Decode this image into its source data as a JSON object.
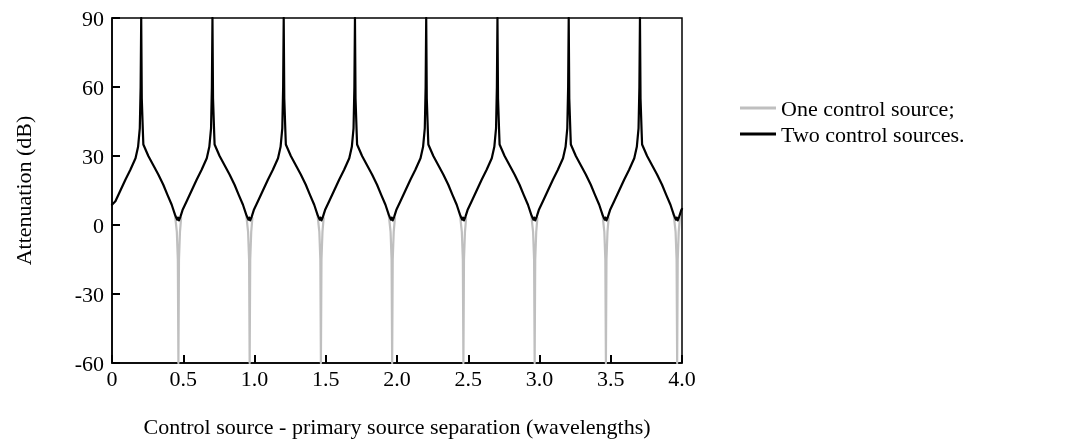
{
  "chart_data": {
    "type": "line",
    "xlabel": "Control source - primary source separation (wavelengths)",
    "ylabel": "Attenuation (dB)",
    "xlim": [
      0,
      4
    ],
    "xticks": [
      0,
      {
        "value": 0.5,
        "label": "0.5"
      },
      {
        "value": 1,
        "label": "1.0"
      },
      {
        "value": 1.5,
        "label": "1.5"
      },
      {
        "value": 2,
        "label": "2.0"
      },
      {
        "value": 2.5,
        "label": "2.5"
      },
      {
        "value": 3,
        "label": "3.0"
      },
      {
        "value": 3.5,
        "label": "3.5"
      },
      {
        "value": 4,
        "label": "4.0"
      }
    ],
    "ylim": [
      -60,
      90
    ],
    "yticks": [
      -60,
      -30,
      0,
      30,
      60,
      90
    ],
    "grid": false,
    "legend": "right",
    "marker": "none",
    "line_style": "solid",
    "series": [
      {
        "name": "One control source;",
        "color": "#bfbfbf",
        "x": [
          0.442,
          0.455,
          0.462,
          0.466,
          0.47,
          0.477,
          0.485,
          0.555,
          0.942,
          0.955,
          0.962,
          0.966,
          0.97,
          0.977,
          0.985,
          1.055,
          1.442,
          1.455,
          1.462,
          1.466,
          1.47,
          1.477,
          1.485,
          1.555,
          1.942,
          1.955,
          1.962,
          1.966,
          1.97,
          1.977,
          1.985,
          2.055,
          2.442,
          2.455,
          2.462,
          2.466,
          2.47,
          2.477,
          2.485,
          2.555,
          2.942,
          2.955,
          2.962,
          2.966,
          2.97,
          2.977,
          2.985,
          3.055,
          3.442,
          3.455,
          3.462,
          3.466,
          3.47,
          3.477,
          3.485,
          3.555,
          3.942,
          3.955,
          3.962,
          3.966,
          3.97,
          3.977,
          3.985
        ],
        "values": [
          4.5,
          -3,
          -15,
          -60,
          -15,
          -3,
          3,
          null,
          4.5,
          -3,
          -15,
          -60,
          -15,
          -3,
          3,
          null,
          4.5,
          -3,
          -15,
          -60,
          -15,
          -3,
          3,
          null,
          4.5,
          -3,
          -15,
          -60,
          -15,
          -3,
          3,
          null,
          4.5,
          -3,
          -15,
          -60,
          -15,
          -3,
          3,
          null,
          4.5,
          -3,
          -15,
          -60,
          -15,
          -3,
          3,
          null,
          4.5,
          -3,
          -15,
          -60,
          -15,
          -3,
          3,
          null,
          4.5,
          -3,
          -15,
          -60,
          -15,
          -3,
          3
        ]
      },
      {
        "name": "Two control sources.",
        "color": "#000000",
        "x": [
          0,
          0.024,
          0.059,
          0.094,
          0.129,
          0.165,
          0.183,
          0.195,
          0.201,
          0.205,
          0.209,
          0.217,
          0.22,
          0.255,
          0.29,
          0.325,
          0.36,
          0.39,
          0.419,
          0.442,
          0.452,
          0.458,
          0.463,
          0.47,
          0.48,
          0.495,
          0.524,
          0.559,
          0.594,
          0.629,
          0.665,
          0.683,
          0.695,
          0.701,
          0.705,
          0.709,
          0.717,
          0.72,
          0.755,
          0.79,
          0.825,
          0.86,
          0.89,
          0.919,
          0.942,
          0.952,
          0.958,
          0.963,
          0.97,
          0.98,
          0.995,
          1.024,
          1.059,
          1.094,
          1.129,
          1.165,
          1.183,
          1.195,
          1.201,
          1.205,
          1.209,
          1.217,
          1.22,
          1.255,
          1.29,
          1.325,
          1.36,
          1.39,
          1.419,
          1.442,
          1.452,
          1.458,
          1.463,
          1.47,
          1.48,
          1.495,
          1.524,
          1.559,
          1.594,
          1.629,
          1.665,
          1.683,
          1.695,
          1.701,
          1.705,
          1.709,
          1.717,
          1.72,
          1.755,
          1.79,
          1.825,
          1.86,
          1.89,
          1.919,
          1.942,
          1.952,
          1.958,
          1.963,
          1.97,
          1.98,
          1.995,
          2.024,
          2.059,
          2.094,
          2.129,
          2.165,
          2.183,
          2.195,
          2.201,
          2.205,
          2.209,
          2.217,
          2.22,
          2.255,
          2.29,
          2.325,
          2.36,
          2.39,
          2.419,
          2.442,
          2.452,
          2.458,
          2.463,
          2.47,
          2.48,
          2.495,
          2.524,
          2.559,
          2.594,
          2.629,
          2.665,
          2.683,
          2.695,
          2.701,
          2.705,
          2.709,
          2.717,
          2.72,
          2.755,
          2.79,
          2.825,
          2.86,
          2.89,
          2.919,
          2.942,
          2.952,
          2.958,
          2.963,
          2.97,
          2.98,
          2.995,
          3.024,
          3.059,
          3.094,
          3.129,
          3.165,
          3.183,
          3.195,
          3.201,
          3.205,
          3.209,
          3.217,
          3.22,
          3.255,
          3.29,
          3.325,
          3.36,
          3.39,
          3.419,
          3.442,
          3.452,
          3.458,
          3.463,
          3.47,
          3.48,
          3.495,
          3.524,
          3.559,
          3.594,
          3.629,
          3.665,
          3.683,
          3.695,
          3.701,
          3.705,
          3.709,
          3.717,
          3.72,
          3.755,
          3.79,
          3.825,
          3.86,
          3.89,
          3.919,
          3.942,
          3.952,
          3.958,
          3.963,
          3.97,
          3.98,
          3.995,
          4
        ],
        "values": [
          8.8,
          10.3,
          15,
          19.7,
          24,
          29,
          34,
          42,
          60,
          90,
          55,
          40,
          35,
          30,
          26,
          22,
          17.5,
          13,
          8.8,
          4.5,
          3,
          2.3,
          3.2,
          2,
          3.5,
          6.5,
          10.3,
          15,
          19.7,
          24,
          29,
          34,
          42,
          60,
          90,
          55,
          40,
          35,
          30,
          26,
          22,
          17.5,
          13,
          8.8,
          4.5,
          3,
          2.3,
          3.2,
          2,
          3.5,
          6.5,
          10.3,
          15,
          19.7,
          24,
          29,
          34,
          42,
          60,
          90,
          55,
          40,
          35,
          30,
          26,
          22,
          17.5,
          13,
          8.8,
          4.5,
          3,
          2.3,
          3.2,
          2,
          3.5,
          6.5,
          10.3,
          15,
          19.7,
          24,
          29,
          34,
          42,
          60,
          90,
          55,
          40,
          35,
          30,
          26,
          22,
          17.5,
          13,
          8.8,
          4.5,
          3,
          2.3,
          3.2,
          2,
          3.5,
          6.5,
          10.3,
          15,
          19.7,
          24,
          29,
          34,
          42,
          60,
          90,
          55,
          40,
          35,
          30,
          26,
          22,
          17.5,
          13,
          8.8,
          4.5,
          3,
          2.3,
          3.2,
          2,
          3.5,
          6.5,
          10.3,
          15,
          19.7,
          24,
          29,
          34,
          42,
          60,
          90,
          55,
          40,
          35,
          30,
          26,
          22,
          17.5,
          13,
          8.8,
          4.5,
          3,
          2.3,
          3.2,
          2,
          3.5,
          6.5,
          10.3,
          15,
          19.7,
          24,
          29,
          34,
          42,
          60,
          90,
          55,
          40,
          35,
          30,
          26,
          22,
          17.5,
          13,
          8.8,
          4.5,
          3,
          2.3,
          3.2,
          2,
          3.5,
          6.5,
          10.3,
          15,
          19.7,
          24,
          29,
          34,
          42,
          60,
          90,
          55,
          40,
          35,
          30,
          26,
          22,
          17.5,
          13,
          8.8,
          4.5,
          3,
          2.3,
          3.2,
          2,
          3.5,
          6.5,
          7
        ]
      }
    ]
  }
}
